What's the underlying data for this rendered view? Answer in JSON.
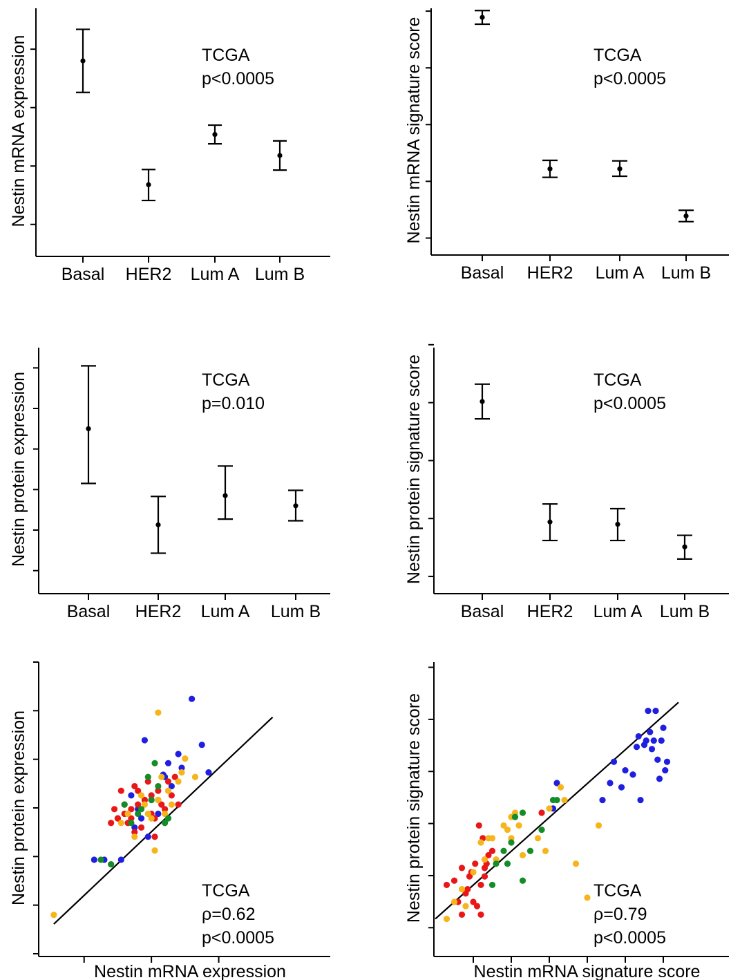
{
  "panel_annotation_source": "TCGA",
  "colors": {
    "Basal": "#1f1fe0",
    "HER2": "#e81818",
    "Lum A": "#f5b51b",
    "Lum B": "#148c28",
    "ink": "#000000"
  },
  "chart_data": [
    {
      "id": "A",
      "type": "errorbar",
      "xlabel": "",
      "ylabel": "Nestin mRNA expression",
      "categories": [
        "Basal",
        "HER2",
        "Lum A",
        "Lum B"
      ],
      "ylim": [
        0,
        4.2
      ],
      "yticks": [
        0.5,
        1.5,
        2.5,
        3.5
      ],
      "series": [
        {
          "mean": [
            3.3,
            1.18,
            2.04,
            1.68
          ],
          "low": [
            2.76,
            0.91,
            1.88,
            1.43
          ],
          "high": [
            3.84,
            1.44,
            2.2,
            1.93
          ]
        }
      ],
      "annotation": [
        "TCGA",
        "p<0.0005"
      ]
    },
    {
      "id": "B",
      "type": "errorbar",
      "xlabel": "",
      "ylabel": "Nestin mRNA signature score",
      "categories": [
        "Basal",
        "HER2",
        "Lum A",
        "Lum B"
      ],
      "ylim": [
        0,
        4.3
      ],
      "yticks": [
        0.25,
        1.25,
        2.25,
        3.25,
        4.25
      ],
      "series": [
        {
          "mean": [
            4.14,
            1.47,
            1.47,
            0.64
          ],
          "low": [
            4.02,
            1.32,
            1.34,
            0.54
          ],
          "high": [
            4.26,
            1.62,
            1.61,
            0.74
          ]
        }
      ],
      "annotation": [
        "TCGA",
        "p<0.0005"
      ]
    },
    {
      "id": "C",
      "type": "errorbar",
      "xlabel": "",
      "ylabel": "Nestin protein expression",
      "categories": [
        "Basal",
        "HER2",
        "Lum A",
        "Lum B"
      ],
      "ylim": [
        0,
        6
      ],
      "yticks": [
        0.5,
        1.5,
        2.5,
        3.5,
        4.5,
        5.5
      ],
      "series": [
        {
          "mean": [
            4.0,
            1.63,
            2.35,
            2.1
          ],
          "low": [
            2.65,
            0.93,
            1.77,
            1.73
          ],
          "high": [
            5.55,
            2.33,
            3.08,
            2.48
          ]
        }
      ],
      "annotation": [
        "TCGA",
        "p=0.010"
      ]
    },
    {
      "id": "D",
      "type": "errorbar",
      "xlabel": "",
      "ylabel": "Nestin protein signature score",
      "categories": [
        "Basal",
        "HER2",
        "Lum A",
        "Lum B"
      ],
      "ylim": [
        0,
        4.2
      ],
      "yticks": [
        0.25,
        1.25,
        2.25,
        3.25,
        4.25
      ],
      "series": [
        {
          "mean": [
            3.27,
            1.19,
            1.15,
            0.76
          ],
          "low": [
            2.97,
            0.87,
            0.87,
            0.55
          ],
          "high": [
            3.57,
            1.5,
            1.42,
            0.96
          ]
        }
      ],
      "annotation": [
        "TCGA",
        "p<0.0005"
      ]
    },
    {
      "id": "E",
      "type": "scatter",
      "xlabel": "Nestin mRNA expression",
      "ylabel": "Nestin protein expression",
      "xlim": [
        -3,
        4
      ],
      "ylim": [
        -3,
        3
      ],
      "xticks": [
        -2,
        0,
        2
      ],
      "yticks": [
        -3,
        -2,
        -1,
        0,
        1,
        2,
        3
      ],
      "fit": {
        "x0": -2.9,
        "y0": -2.7,
        "x1": 3.6,
        "y1": 1.8
      },
      "series": [
        {
          "group": "Basal",
          "x": [
            1.2,
            1.7,
            0.8,
            -0.2,
            0.5,
            0.9,
            0.4,
            -0.9,
            -1.4,
            -1.7,
            0.0,
            -0.4,
            0.6,
            0.2,
            -0.6,
            -0.5,
            -0.1,
            1.5,
            0.35,
            -0.3
          ],
          "y": [
            2.2,
            0.6,
            1.0,
            1.3,
            0.8,
            0.7,
            0.5,
            -1.3,
            -1.3,
            -1.3,
            0.0,
            -0.2,
            0.3,
            -0.3,
            0.1,
            -0.6,
            -0.8,
            1.2,
            0.55,
            -0.4
          ]
        },
        {
          "group": "HER2",
          "x": [
            -1.2,
            -1.0,
            -0.8,
            -0.6,
            -0.4,
            -0.2,
            0.0,
            0.2,
            0.4,
            0.6,
            -1.1,
            -0.7,
            -0.3,
            0.1,
            0.3,
            -0.9,
            -0.5,
            -0.1,
            0.7,
            0.8,
            -0.8,
            -1.0,
            -0.6,
            0.5,
            0.0,
            0.2,
            -0.4,
            -0.2,
            0.1,
            -0.5
          ],
          "y": [
            -0.5,
            -0.4,
            -0.3,
            -0.2,
            -0.1,
            0.0,
            0.1,
            0.0,
            -0.2,
            0.1,
            -0.2,
            -0.5,
            -0.6,
            -0.8,
            -0.1,
            0.2,
            0.3,
            0.4,
            0.5,
            -0.1,
            -0.1,
            -0.4,
            -0.4,
            0.4,
            -0.3,
            0.2,
            0.2,
            0.0,
            -0.4,
            -0.7
          ]
        },
        {
          "group": "Lum A",
          "x": [
            -2.9,
            -0.9,
            -0.7,
            -0.3,
            -0.1,
            0.2,
            0.5,
            0.8,
            1.0,
            1.3,
            0.1,
            -0.5,
            0.3,
            0.6,
            -0.2,
            0.0,
            0.4,
            0.9,
            0.2
          ],
          "y": [
            -2.5,
            -0.5,
            -0.3,
            0.1,
            -0.3,
            0.0,
            0.2,
            0.4,
            0.9,
            0.5,
            -1.1,
            -0.8,
            0.5,
            -0.1,
            -0.1,
            -0.4,
            -0.3,
            0.6,
            1.9
          ]
        },
        {
          "group": "Lum B",
          "x": [
            -1.5,
            -1.2,
            -0.6,
            -0.3,
            -0.1,
            0.2,
            0.4,
            0.5,
            0.1,
            -0.4,
            0.0,
            -0.8
          ],
          "y": [
            -1.3,
            -1.4,
            -0.5,
            -0.2,
            0.5,
            0.3,
            -0.5,
            -0.4,
            0.8,
            -0.3,
            0.0,
            -0.1
          ]
        }
      ],
      "annotation": [
        "TCGA",
        "ρ=0.62",
        "p<0.0005"
      ]
    },
    {
      "id": "F",
      "type": "scatter",
      "xlabel": "Nestin mRNA signature score",
      "ylabel": "Nestin protein signature score",
      "xlim": [
        -1,
        5.4
      ],
      "ylim": [
        -2.5,
        3.1
      ],
      "xticks": [
        0,
        1,
        2,
        3,
        4,
        5
      ],
      "yticks": [
        -2,
        -1,
        0,
        1,
        2,
        3
      ],
      "fit": {
        "x0": -1,
        "y0": -2.2,
        "x1": 5.4,
        "y1": 2.9
      },
      "series": [
        {
          "group": "Basal",
          "x": [
            4.6,
            4.8,
            5.0,
            4.75,
            4.65,
            5.1,
            4.2,
            3.9,
            3.4,
            3.7,
            4.0,
            4.4,
            4.55,
            5.05,
            4.9,
            2.1,
            2.2,
            3.6,
            4.35,
            4.3,
            4.95,
            4.7,
            4.5,
            4.85
          ],
          "y": [
            2.7,
            2.7,
            2.3,
            2.0,
            2.2,
            1.5,
            1.2,
            0.9,
            0.6,
            1.5,
            1.3,
            0.6,
            2.0,
            1.3,
            1.1,
            0.4,
            1.0,
            1.0,
            2.1,
            1.85,
            2.0,
            1.8,
            1.9,
            1.55
          ]
        },
        {
          "group": "HER2",
          "x": [
            -0.7,
            -0.5,
            -0.3,
            -0.2,
            -0.1,
            0.0,
            0.1,
            0.2,
            0.3,
            0.4,
            -0.4,
            -0.3,
            0.2,
            0.15,
            0.05,
            -0.15,
            -0.05,
            0.25,
            1.8,
            0.3,
            0.35,
            0.5
          ],
          "y": [
            -1.4,
            -1.3,
            -1.0,
            -1.6,
            -1.2,
            -1.8,
            -1.9,
            -1.4,
            -1.0,
            -0.7,
            -1.8,
            -2.1,
            -2.1,
            0.0,
            -0.9,
            -1.5,
            -1.1,
            -0.3,
            0.3,
            -1.2,
            -0.9,
            -0.6
          ]
        },
        {
          "group": "Lum A",
          "x": [
            -0.7,
            -0.5,
            -0.2,
            0.0,
            0.2,
            0.4,
            0.6,
            0.8,
            1.0,
            1.3,
            1.7,
            2.0,
            2.4,
            2.7,
            3.3,
            3.0,
            0.3,
            1.0,
            -0.3,
            0.5,
            1.9,
            0.9,
            1.2,
            1.1,
            2.3
          ],
          "y": [
            -2.2,
            -1.8,
            -1.9,
            -1.1,
            -0.4,
            -0.3,
            -0.8,
            0.0,
            0.2,
            -0.7,
            -0.3,
            0.4,
            0.6,
            -0.9,
            0.0,
            -1.7,
            -0.8,
            -0.3,
            -1.5,
            -0.3,
            -0.6,
            -0.1,
            0.0,
            0.3,
            0.9
          ]
        },
        {
          "group": "Lum B",
          "x": [
            0.6,
            0.8,
            1.0,
            1.1,
            1.3,
            1.5,
            1.8,
            2.1,
            2.2,
            0.5,
            0.9,
            1.3
          ],
          "y": [
            -0.9,
            -0.6,
            -0.4,
            0.2,
            0.3,
            -0.6,
            -0.1,
            0.6,
            0.6,
            -1.4,
            -0.9,
            -1.3
          ]
        }
      ],
      "annotation": [
        "TCGA",
        "ρ=0.79",
        "p<0.0005"
      ]
    }
  ]
}
